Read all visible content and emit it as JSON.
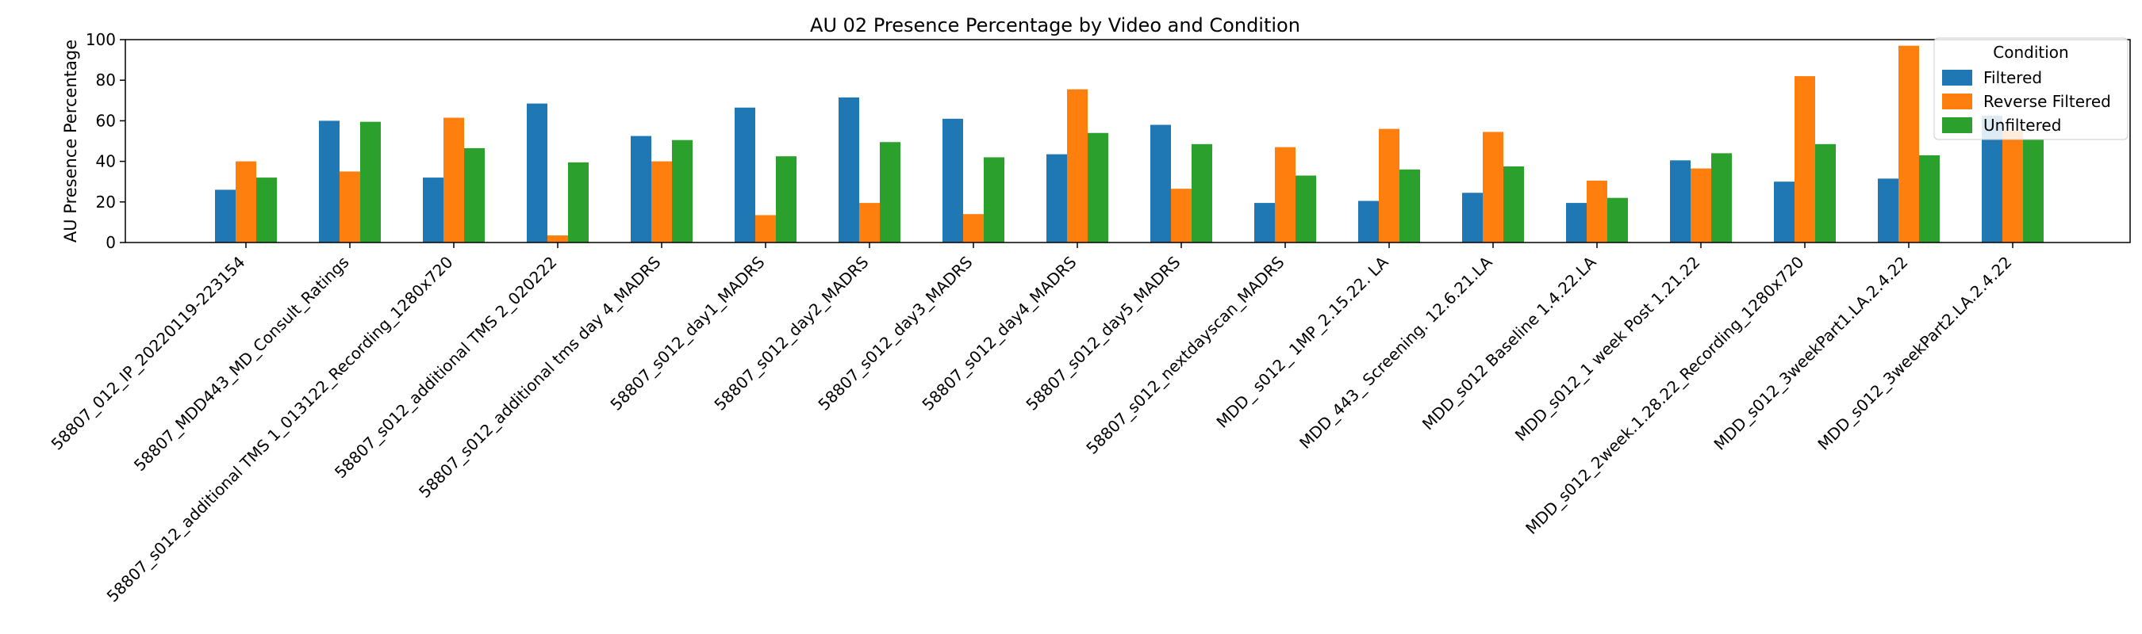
{
  "chart_data": {
    "type": "bar",
    "title": "AU 02 Presence Percentage by Video and Condition",
    "xlabel": "",
    "ylabel": "AU Presence Percentage",
    "ylim": [
      0,
      100
    ],
    "yticks": [
      0,
      20,
      40,
      60,
      80,
      100
    ],
    "grid": false,
    "legend": {
      "title": "Condition",
      "placement": "top-right"
    },
    "categories": [
      "58807_012_IP_20220119-223154",
      "58807_MDD443_MD_Consult_Ratings",
      "58807_s012_additional TMS 1_013122_Recording_1280x720",
      "58807_s012_additional TMS 2_020222",
      "58807_s012_additional tms day 4_MADRS",
      "58807_s012_day1_MADRS",
      "58807_s012_day2_MADRS",
      "58807_s012_day3_MADRS",
      "58807_s012_day4_MADRS",
      "58807_s012_day5_MADRS",
      "58807_s012_nextdayscan_MADRS",
      "MDD_ s012_ 1MP_2.15.22. LA",
      "MDD_443_ Screening. 12.6.21.LA",
      "MDD_s012 Baseline 1.4.22.LA",
      "MDD_s012_1 week Post 1.21.22",
      "MDD_s012_2week.1.28.22_Recording_1280x720",
      "MDD_s012_3weekPart1.LA.2.4.22",
      "MDD_s012_3weekPart2.LA.2.4.22"
    ],
    "series": [
      {
        "name": "Filtered",
        "color": "#1f77b4",
        "values": [
          26,
          60,
          32,
          68.5,
          52.5,
          66.5,
          71.5,
          61,
          43.5,
          58,
          19.5,
          20.5,
          24.5,
          19.5,
          40.5,
          30,
          31.5,
          62.5
        ]
      },
      {
        "name": "Reverse Filtered",
        "color": "#ff7f0e",
        "values": [
          40,
          35,
          61.5,
          3.5,
          40,
          13.5,
          19.5,
          14,
          75.5,
          26.5,
          47,
          56,
          54.5,
          30.5,
          36.5,
          82,
          97,
          55
        ]
      },
      {
        "name": "Unfiltered",
        "color": "#2ca02c",
        "values": [
          32,
          59.5,
          46.5,
          39.5,
          50.5,
          42.5,
          49.5,
          42,
          54,
          48.5,
          33,
          36,
          37.5,
          22,
          44,
          48.5,
          43,
          51
        ]
      }
    ]
  }
}
